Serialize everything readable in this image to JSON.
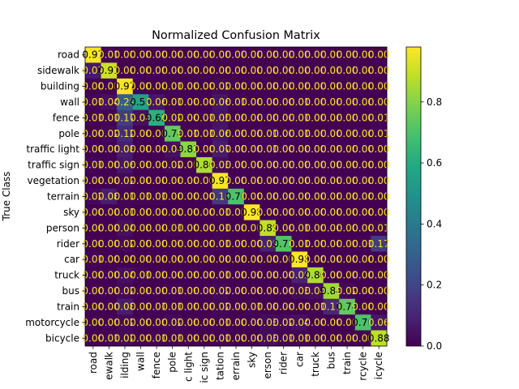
{
  "chart_data": {
    "type": "heatmap",
    "title": "Normalized Confusion Matrix",
    "ylabel": "True Class",
    "xlabel": "",
    "categories": [
      "road",
      "sidewalk",
      "building",
      "wall",
      "fence",
      "pole",
      "traffic light",
      "traffic sign",
      "vegetation",
      "terrain",
      "sky",
      "person",
      "rider",
      "car",
      "truck",
      "bus",
      "train",
      "motorcycle",
      "bicycle"
    ],
    "x_tick_labels": [
      "road",
      "ewalk",
      "ilding",
      "wall",
      "fence",
      "pole",
      "c light",
      "ic sign",
      "tation",
      "errain",
      "sky",
      "erson",
      "rider",
      "car",
      "truck",
      "bus",
      "train",
      "rcycle",
      "icycle"
    ],
    "cell_labels": [
      [
        "0.97",
        "0.01",
        "0.00",
        "0.00",
        "0.00",
        "0.00",
        "0.00",
        "0.00",
        "0.00",
        "0.00",
        "0.00",
        "0.00",
        "0.00",
        "0.00",
        "0.00",
        "0.00",
        "0.00",
        "0.00",
        "0.00"
      ],
      [
        "0.07",
        "0.91",
        "0.00",
        "0.00",
        "0.00",
        "0.00",
        "0.00",
        "0.00",
        "0.00",
        "0.00",
        "0.00",
        "0.00",
        "0.00",
        "0.00",
        "0.00",
        "0.00",
        "0.00",
        "0.00",
        "0.00"
      ],
      [
        "0.00",
        "0.00",
        "0.97",
        "0.00",
        "0.00",
        "0.01",
        "0.00",
        "0.00",
        "0.02",
        "0.00",
        "0.00",
        "0.00",
        "0.00",
        "0.00",
        "0.00",
        "0.00",
        "0.00",
        "0.00",
        "0.00"
      ],
      [
        "0.01",
        "0.04",
        "0.29",
        "0.56",
        "0.06",
        "0.01",
        "0.00",
        "0.00",
        "0.06",
        "0.01",
        "0.00",
        "0.00",
        "0.00",
        "0.01",
        "0.00",
        "0.00",
        "0.00",
        "0.00",
        "0.00"
      ],
      [
        "0.01",
        "0.01",
        "0.17",
        "0.04",
        "0.62",
        "0.02",
        "0.00",
        "0.01",
        "0.05",
        "0.00",
        "0.00",
        "0.00",
        "0.00",
        "0.01",
        "0.00",
        "0.00",
        "0.00",
        "0.00",
        "0.01"
      ],
      [
        "0.00",
        "0.02",
        "0.12",
        "0.00",
        "0.00",
        "0.74",
        "0.01",
        "0.01",
        "0.06",
        "0.00",
        "0.00",
        "0.01",
        "0.00",
        "0.01",
        "0.00",
        "0.00",
        "0.00",
        "0.00",
        "0.01"
      ],
      [
        "0.00",
        "0.00",
        "0.08",
        "0.00",
        "0.00",
        "0.04",
        "0.81",
        "0.00",
        "0.07",
        "0.00",
        "0.00",
        "0.01",
        "0.00",
        "0.00",
        "0.00",
        "0.00",
        "0.00",
        "0.00",
        "0.00"
      ],
      [
        "0.01",
        "0.00",
        "0.06",
        "0.00",
        "0.00",
        "0.02",
        "0.00",
        "0.86",
        "0.03",
        "0.00",
        "0.00",
        "0.00",
        "0.00",
        "0.00",
        "0.00",
        "0.00",
        "0.00",
        "0.00",
        "0.00"
      ],
      [
        "0.00",
        "0.00",
        "0.02",
        "0.00",
        "0.00",
        "0.00",
        "0.00",
        "0.00",
        "0.97",
        "0.00",
        "0.00",
        "0.00",
        "0.00",
        "0.00",
        "0.00",
        "0.00",
        "0.00",
        "0.00",
        "0.00"
      ],
      [
        "0.02",
        "0.08",
        "0.01",
        "0.01",
        "0.01",
        "0.00",
        "0.00",
        "0.00",
        "0.16",
        "0.70",
        "0.00",
        "0.00",
        "0.00",
        "0.00",
        "0.00",
        "0.00",
        "0.00",
        "0.00",
        "0.00"
      ],
      [
        "0.00",
        "0.00",
        "0.01",
        "0.00",
        "0.00",
        "0.00",
        "0.00",
        "0.00",
        "0.01",
        "0.00",
        "0.98",
        "0.00",
        "0.00",
        "0.00",
        "0.00",
        "0.00",
        "0.00",
        "0.00",
        "0.00"
      ],
      [
        "0.00",
        "0.00",
        "0.04",
        "0.00",
        "0.00",
        "0.01",
        "0.00",
        "0.00",
        "0.01",
        "0.00",
        "0.00",
        "0.89",
        "0.00",
        "0.01",
        "0.00",
        "0.00",
        "0.00",
        "0.00",
        "0.01"
      ],
      [
        "0.00",
        "0.00",
        "0.02",
        "0.00",
        "0.00",
        "0.00",
        "0.00",
        "0.00",
        "0.01",
        "0.00",
        "0.00",
        "0.09",
        "0.71",
        "0.01",
        "0.00",
        "0.00",
        "0.00",
        "0.01",
        "0.17"
      ],
      [
        "0.01",
        "0.00",
        "0.00",
        "0.00",
        "0.00",
        "0.00",
        "0.00",
        "0.00",
        "0.00",
        "0.00",
        "0.00",
        "0.00",
        "0.00",
        "0.98",
        "0.00",
        "0.00",
        "0.00",
        "0.00",
        "0.00"
      ],
      [
        "0.00",
        "0.00",
        "0.04",
        "0.01",
        "0.00",
        "0.00",
        "0.00",
        "0.00",
        "0.01",
        "0.00",
        "0.00",
        "0.00",
        "0.00",
        "0.09",
        "0.86",
        "0.00",
        "0.00",
        "0.00",
        "0.00"
      ],
      [
        "0.00",
        "0.00",
        "0.02",
        "0.00",
        "0.00",
        "0.01",
        "0.00",
        "0.00",
        "0.02",
        "0.00",
        "0.00",
        "0.00",
        "0.00",
        "0.03",
        "0.04",
        "0.84",
        "0.02",
        "0.00",
        "0.00"
      ],
      [
        "0.00",
        "0.00",
        "0.08",
        "0.00",
        "0.01",
        "0.01",
        "0.00",
        "0.00",
        "0.02",
        "0.00",
        "0.01",
        "0.00",
        "0.00",
        "0.00",
        "0.01",
        "0.11",
        "0.74",
        "0.00",
        "0.00"
      ],
      [
        "0.00",
        "0.00",
        "0.02",
        "0.00",
        "0.00",
        "0.02",
        "0.00",
        "0.00",
        "0.01",
        "0.00",
        "0.00",
        "0.03",
        "0.02",
        "0.04",
        "0.00",
        "0.00",
        "0.00",
        "0.70",
        "0.06"
      ],
      [
        "0.00",
        "0.01",
        "0.02",
        "0.00",
        "0.01",
        "0.01",
        "0.00",
        "0.00",
        "0.01",
        "0.00",
        "0.00",
        "0.03",
        "0.01",
        "0.01",
        "0.00",
        "0.00",
        "0.00",
        "0.00",
        "0.88"
      ]
    ],
    "colorbar": {
      "ticks": [
        "0.0",
        "0.2",
        "0.4",
        "0.6",
        "0.8"
      ],
      "range": [
        0,
        0.98
      ]
    },
    "colormap": "viridis",
    "grid": false
  }
}
